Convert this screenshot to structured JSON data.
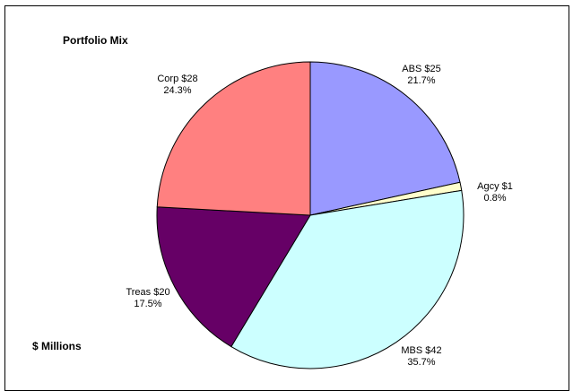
{
  "chart_data": {
    "type": "pie",
    "title": "Portfolio Mix",
    "units_note": "$ Millions",
    "start_angle_deg": 0,
    "direction": "clockwise",
    "slices": [
      {
        "name": "ABS",
        "value": 25,
        "percent": "21.7%",
        "value_label": "ABS $25",
        "color": "#9999FF"
      },
      {
        "name": "Agcy",
        "value": 1,
        "percent": "0.8%",
        "value_label": "Agcy $1",
        "color": "#FFFFCC"
      },
      {
        "name": "MBS",
        "value": 42,
        "percent": "35.7%",
        "value_label": "MBS $42",
        "color": "#CCFFFF"
      },
      {
        "name": "Treas",
        "value": 20,
        "percent": "17.5%",
        "value_label": "Treas $20",
        "color": "#660066"
      },
      {
        "name": "Corp",
        "value": 28,
        "percent": "24.3%",
        "value_label": "Corp $28",
        "color": "#FF8080"
      }
    ]
  }
}
